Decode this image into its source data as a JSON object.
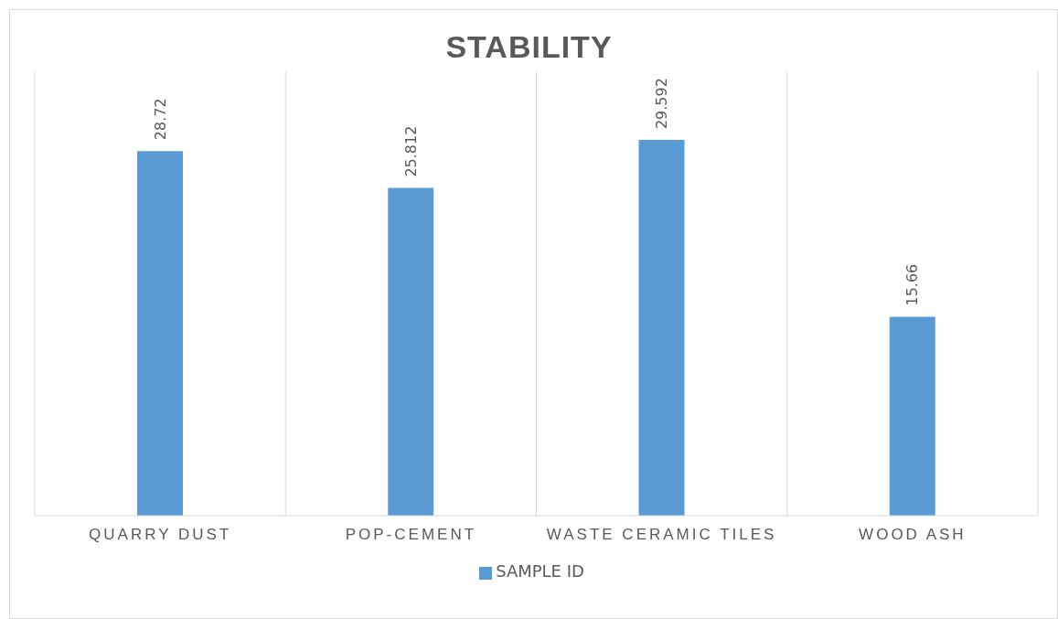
{
  "chart_data": {
    "type": "bar",
    "title": "STABILITY",
    "categories": [
      "QUARRY DUST",
      "POP-CEMENT",
      "WASTE CERAMIC TILES",
      "WOOD ASH"
    ],
    "series": [
      {
        "name": "SAMPLE ID",
        "color": "#5b9bd5",
        "values": [
          28.72,
          25.812,
          29.592,
          15.66
        ]
      }
    ],
    "ylim": [
      0,
      35
    ],
    "tick_labels": "x",
    "grid": "x",
    "legend": "bottom",
    "data_labels": true
  }
}
